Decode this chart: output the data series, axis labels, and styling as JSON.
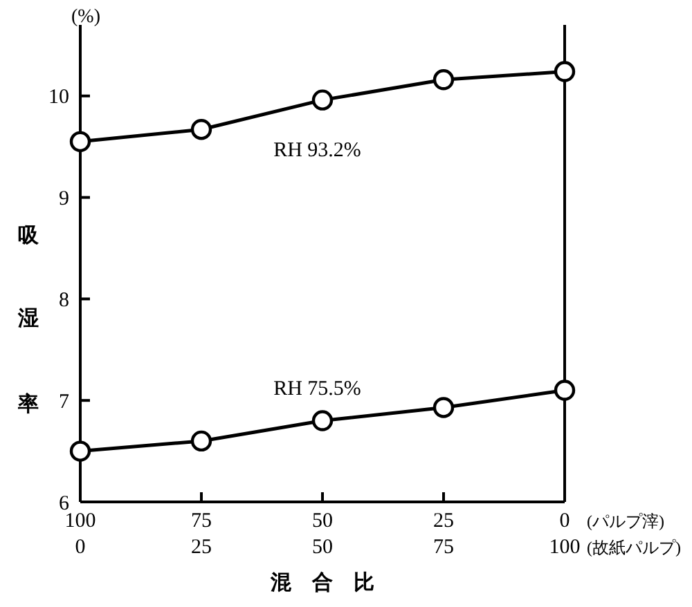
{
  "chart_data": {
    "type": "line",
    "ylabel": "吸湿率",
    "xlabel": "混　合　比",
    "categories": [
      "100\n0",
      "75\n25",
      "50\n50",
      "25\n75",
      "0\n100"
    ],
    "series": [
      {
        "name": "RH 93.2%",
        "color": "#000000",
        "values": [
          9.55,
          9.67,
          9.96,
          10.16,
          10.24
        ]
      },
      {
        "name": "RH 75.5%",
        "color": "#000000",
        "values": [
          6.5,
          6.6,
          6.8,
          6.93,
          7.1
        ]
      }
    ],
    "ylim": [
      6,
      10.7
    ],
    "yticks": [
      6,
      7,
      8,
      9,
      10
    ],
    "marker": "circle",
    "line_style": "solid",
    "grid": false,
    "annotations": [
      "(パルプ滓)",
      "(故紙パルプ)",
      "(%)"
    ]
  }
}
